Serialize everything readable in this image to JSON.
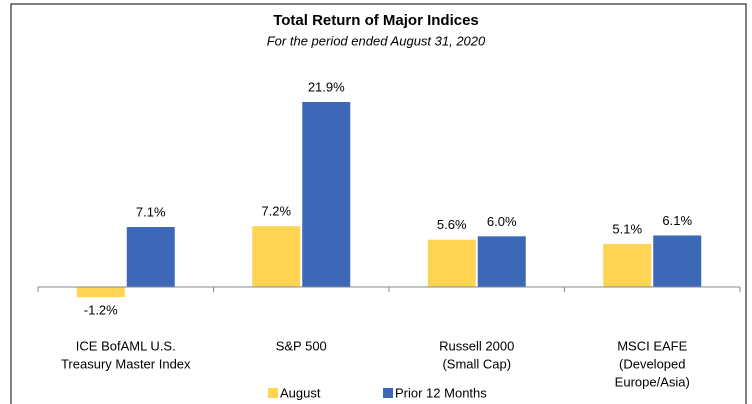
{
  "chart_data": {
    "type": "bar",
    "title": "Total Return of Major Indices",
    "subtitle": "For the period ended August 31, 2020",
    "categories": [
      [
        "ICE BofAML U.S.",
        "Treasury Master Index"
      ],
      [
        "S&P 500"
      ],
      [
        "Russell 2000",
        "(Small Cap)"
      ],
      [
        "MSCI EAFE",
        "(Developed",
        "Europe/Asia)"
      ]
    ],
    "series": [
      {
        "name": "August",
        "color": "#ffd452",
        "values": [
          -1.2,
          7.2,
          5.6,
          5.1
        ],
        "value_labels": [
          "-1.2%",
          "7.2%",
          "5.6%",
          "5.1%"
        ]
      },
      {
        "name": "Prior 12 Months",
        "color": "#3d67b7",
        "values": [
          7.1,
          21.9,
          6.0,
          6.1
        ],
        "value_labels": [
          "7.1%",
          "21.9%",
          "6.0%",
          "6.1%"
        ]
      }
    ]
  }
}
